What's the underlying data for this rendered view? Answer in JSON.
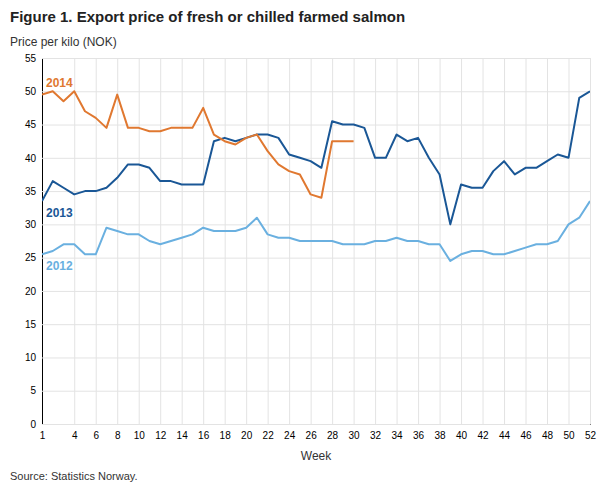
{
  "chart_data": {
    "type": "line",
    "title": "Figure 1. Export price of fresh or chilled farmed salmon",
    "xlabel": "Week",
    "ylabel": "Price per kilo (NOK)",
    "annotations": [
      "Source: Statistics Norway."
    ],
    "x": [
      1,
      2,
      3,
      4,
      5,
      6,
      7,
      8,
      9,
      10,
      11,
      12,
      13,
      14,
      15,
      16,
      17,
      18,
      19,
      20,
      21,
      22,
      23,
      24,
      25,
      26,
      27,
      28,
      29,
      30,
      31,
      32,
      33,
      34,
      35,
      36,
      37,
      38,
      39,
      40,
      41,
      42,
      43,
      44,
      45,
      46,
      47,
      48,
      49,
      50,
      51,
      52
    ],
    "series": [
      {
        "name": "2012",
        "color": "#6ab0e0",
        "values": [
          25.5,
          26.0,
          27.0,
          27.0,
          25.5,
          25.5,
          29.5,
          29.0,
          28.5,
          28.5,
          27.5,
          27.0,
          27.5,
          28.0,
          28.5,
          29.5,
          29.0,
          29.0,
          29.0,
          29.5,
          31.0,
          28.5,
          28.0,
          28.0,
          27.5,
          27.5,
          27.5,
          27.5,
          27.0,
          27.0,
          27.0,
          27.5,
          27.5,
          28.0,
          27.5,
          27.5,
          27.0,
          27.0,
          24.5,
          25.5,
          26.0,
          26.0,
          25.5,
          25.5,
          26.0,
          26.5,
          27.0,
          27.0,
          27.5,
          30.0,
          31.0,
          33.5
        ]
      },
      {
        "name": "2013",
        "color": "#1a5796",
        "values": [
          33.5,
          36.5,
          35.5,
          34.5,
          35.0,
          35.0,
          35.5,
          37.0,
          39.0,
          39.0,
          38.5,
          36.5,
          36.5,
          36.0,
          36.0,
          36.0,
          42.5,
          43.0,
          42.5,
          43.0,
          43.5,
          43.5,
          43.0,
          40.5,
          40.0,
          39.5,
          38.5,
          45.5,
          45.0,
          45.0,
          44.5,
          40.0,
          40.0,
          43.5,
          42.5,
          43.0,
          40.0,
          37.5,
          30.0,
          36.0,
          35.5,
          35.5,
          38.0,
          39.5,
          37.5,
          38.5,
          38.5,
          39.5,
          40.5,
          40.0,
          49.0,
          50.0
        ]
      },
      {
        "name": "2014",
        "color": "#e07830",
        "values": [
          49.5,
          50.0,
          48.5,
          50.0,
          47.0,
          46.0,
          44.5,
          49.5,
          44.5,
          44.5,
          44.0,
          44.0,
          44.5,
          44.5,
          44.5,
          47.5,
          43.5,
          42.5,
          42.0,
          43.0,
          43.5,
          41.0,
          39.0,
          38.0,
          37.5,
          34.5,
          34.0,
          42.5,
          42.5,
          42.5,
          null,
          null,
          null,
          null,
          null,
          null,
          null,
          null,
          null,
          null,
          null,
          null,
          null,
          null,
          null,
          null,
          null,
          null,
          null,
          null,
          null,
          null
        ]
      }
    ],
    "xlim": [
      1,
      52
    ],
    "xticks": [
      1,
      4,
      6,
      8,
      10,
      12,
      14,
      16,
      18,
      20,
      22,
      24,
      26,
      28,
      30,
      32,
      34,
      36,
      38,
      40,
      42,
      44,
      46,
      48,
      50,
      52
    ],
    "ylim": [
      0,
      55
    ],
    "yticks": [
      0,
      5,
      10,
      15,
      20,
      25,
      30,
      35,
      40,
      45,
      50,
      55
    ],
    "grid": true
  }
}
